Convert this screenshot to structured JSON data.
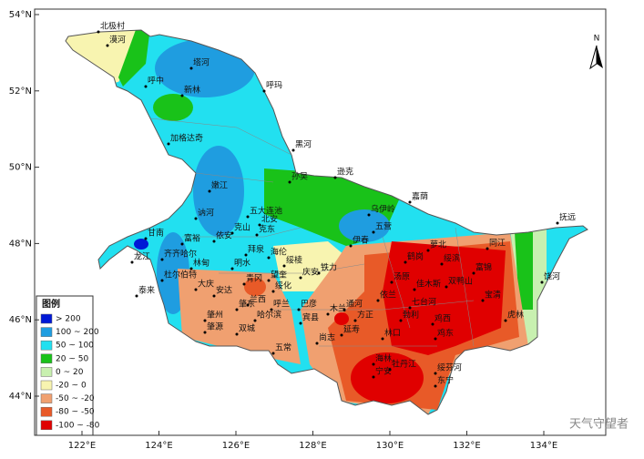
{
  "map": {
    "lat_labels": [
      "54°N",
      "52°N",
      "50°N",
      "48°N",
      "46°N",
      "44°N"
    ],
    "lon_labels": [
      "122°E",
      "124°E",
      "126°E",
      "128°E",
      "130°E",
      "132°E",
      "134°E"
    ],
    "north": "N",
    "legend": {
      "title": "图例",
      "items": [
        {
          "label": "> 200",
          "color": "#0018d6"
        },
        {
          "label": "100 ~ 200",
          "color": "#1f9de0"
        },
        {
          "label": "50 ~ 100",
          "color": "#22e0f0"
        },
        {
          "label": "20 ~ 50",
          "color": "#19c219"
        },
        {
          "label": "0 ~ 20",
          "color": "#c8f0b0"
        },
        {
          "label": "-20 ~ 0",
          "color": "#f8f4b0"
        },
        {
          "label": "-50 ~ -20",
          "color": "#f0a070"
        },
        {
          "label": "-80 ~ -50",
          "color": "#e85a28"
        },
        {
          "label": "-100 ~ -80",
          "color": "#e00000"
        }
      ]
    },
    "cities": [
      "北极村",
      "漠河",
      "塔河",
      "呼中",
      "新林",
      "呼玛",
      "加格达奇",
      "黑河",
      "逊克",
      "孙吴",
      "嘉荫",
      "嫩江",
      "乌伊岭",
      "五大连池",
      "北安",
      "讷河",
      "克山",
      "克东",
      "五营",
      "伊春",
      "抚远",
      "甘南",
      "富裕",
      "龙江",
      "依安",
      "拜泉",
      "齐齐哈尔",
      "林甸",
      "明水",
      "海伦",
      "绥棱",
      "杜尔伯特",
      "青冈",
      "望奎",
      "庆安",
      "铁力",
      "萝北",
      "同江",
      "鹤岗",
      "绥滨",
      "富锦",
      "饶河",
      "泰来",
      "安达",
      "绥化",
      "汤原",
      "佳木斯",
      "宝清",
      "大庆",
      "兰西",
      "依兰",
      "双鸭山",
      "七台河",
      "肇东",
      "呼兰",
      "巴彦",
      "木兰",
      "通河",
      "方正",
      "肇州",
      "哈尔滨",
      "宾县",
      "勃利",
      "鸡西",
      "虎林",
      "肇源",
      "双城",
      "延寿",
      "林口",
      "鸡东",
      "五常",
      "尚志",
      "海林",
      "牡丹江",
      "绥芬河",
      "宁安",
      "东宁"
    ],
    "watermark": "天气守望者"
  }
}
